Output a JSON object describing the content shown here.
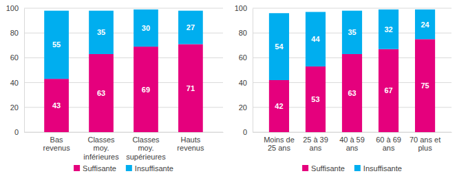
{
  "chart_data": [
    {
      "type": "bar",
      "stacked": true,
      "data_labels": true,
      "grid": true,
      "legend": "bottom",
      "categories": [
        "Bas revenus",
        "Classes moy. inférieures",
        "Classes moy. supérieures",
        "Hauts revenus"
      ],
      "series": [
        {
          "name": "Suffisante",
          "color": "#e5007d",
          "values": [
            43,
            63,
            69,
            71
          ]
        },
        {
          "name": "Insuffisante",
          "color": "#00aeef",
          "values": [
            55,
            35,
            30,
            27
          ]
        }
      ],
      "ylim": [
        0,
        100
      ],
      "yticks": [
        0,
        20,
        40,
        60,
        80,
        100
      ]
    },
    {
      "type": "bar",
      "stacked": true,
      "data_labels": true,
      "grid": true,
      "legend": "bottom",
      "categories": [
        "Moins de 25 ans",
        "25 à 39 ans",
        "40 à 59 ans",
        "60 à 69 ans",
        "70 ans et plus"
      ],
      "series": [
        {
          "name": "Suffisante",
          "color": "#e5007d",
          "values": [
            42,
            53,
            63,
            67,
            75
          ]
        },
        {
          "name": "Insuffisante",
          "color": "#00aeef",
          "values": [
            54,
            44,
            35,
            32,
            24
          ]
        }
      ],
      "ylim": [
        0,
        100
      ],
      "yticks": [
        0,
        20,
        40,
        60,
        80,
        100
      ]
    }
  ]
}
